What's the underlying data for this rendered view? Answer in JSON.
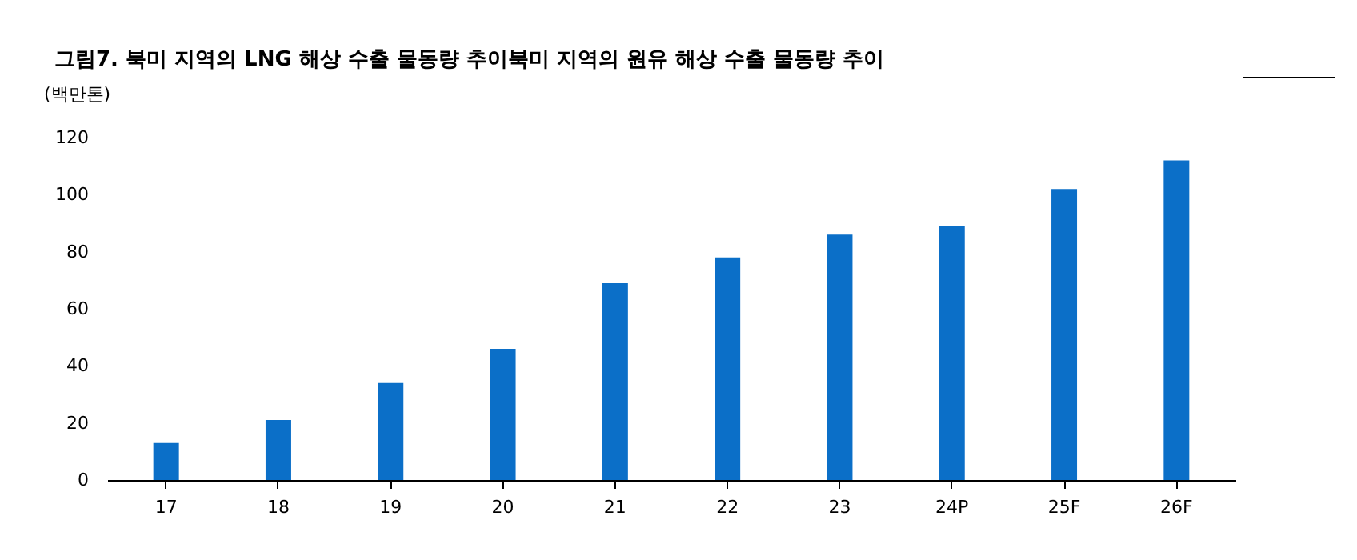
{
  "chart_data": {
    "type": "bar",
    "title": "그림7.  북미 지역의 LNG 해상 수출 물동량 추이북미 지역의 원유 해상 수출 물동량 추이",
    "ylabel": "(백만톤)",
    "categories": [
      "17",
      "18",
      "19",
      "20",
      "21",
      "22",
      "23",
      "24P",
      "25F",
      "26F"
    ],
    "values": [
      13,
      21,
      34,
      46,
      69,
      78,
      86,
      89,
      102,
      112
    ],
    "color": "#0b6fc8",
    "ylim": [
      0,
      120
    ],
    "yticks": [
      0,
      20,
      40,
      60,
      80,
      100,
      120
    ],
    "grid": false
  }
}
